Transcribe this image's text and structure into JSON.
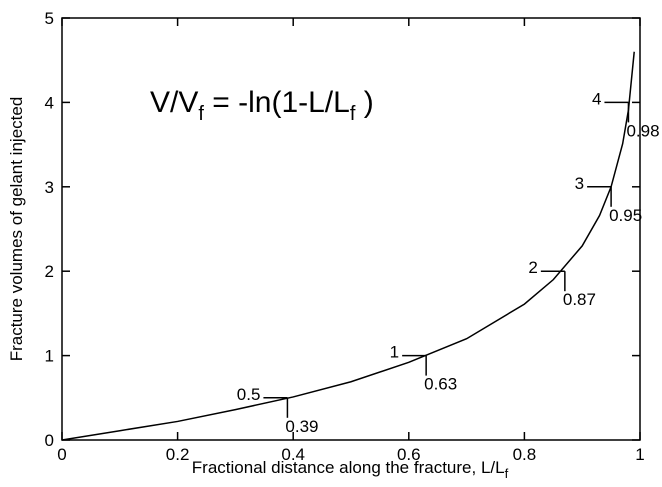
{
  "chart_data": {
    "type": "line",
    "x_label": [
      "Fractional distance along the fracture, L/L",
      "f"
    ],
    "y_label": "Fracture volumes of gelant injected",
    "equation": [
      "V/V",
      "f",
      " = -ln(1-L/L",
      "f",
      " )"
    ],
    "x": [
      0,
      0.1,
      0.2,
      0.3,
      0.4,
      0.5,
      0.6,
      0.7,
      0.8,
      0.85,
      0.9,
      0.93,
      0.95,
      0.97,
      0.98,
      0.99
    ],
    "series": [
      {
        "color": "#000000",
        "values": [
          0,
          0.11,
          0.22,
          0.36,
          0.51,
          0.69,
          0.92,
          1.2,
          1.61,
          1.9,
          2.3,
          2.66,
          3.0,
          3.51,
          3.91,
          4.6
        ]
      }
    ],
    "xlim": [
      0,
      1
    ],
    "ylim": [
      0,
      5
    ],
    "xticks": [
      0,
      0.2,
      0.4,
      0.6,
      0.8,
      1
    ],
    "yticks": [
      0,
      1,
      2,
      3,
      4,
      5
    ],
    "annotations": [
      {
        "x": 0.39,
        "y": 0.5,
        "y_text": "0.5",
        "x_text": "0.39"
      },
      {
        "x": 0.63,
        "y": 1,
        "y_text": "1",
        "x_text": "0.63"
      },
      {
        "x": 0.87,
        "y": 2,
        "y_text": "2",
        "x_text": "0.87"
      },
      {
        "x": 0.95,
        "y": 3,
        "y_text": "3",
        "x_text": "0.95"
      },
      {
        "x": 0.98,
        "y": 4,
        "y_text": "4",
        "x_text": "0.98"
      }
    ]
  }
}
